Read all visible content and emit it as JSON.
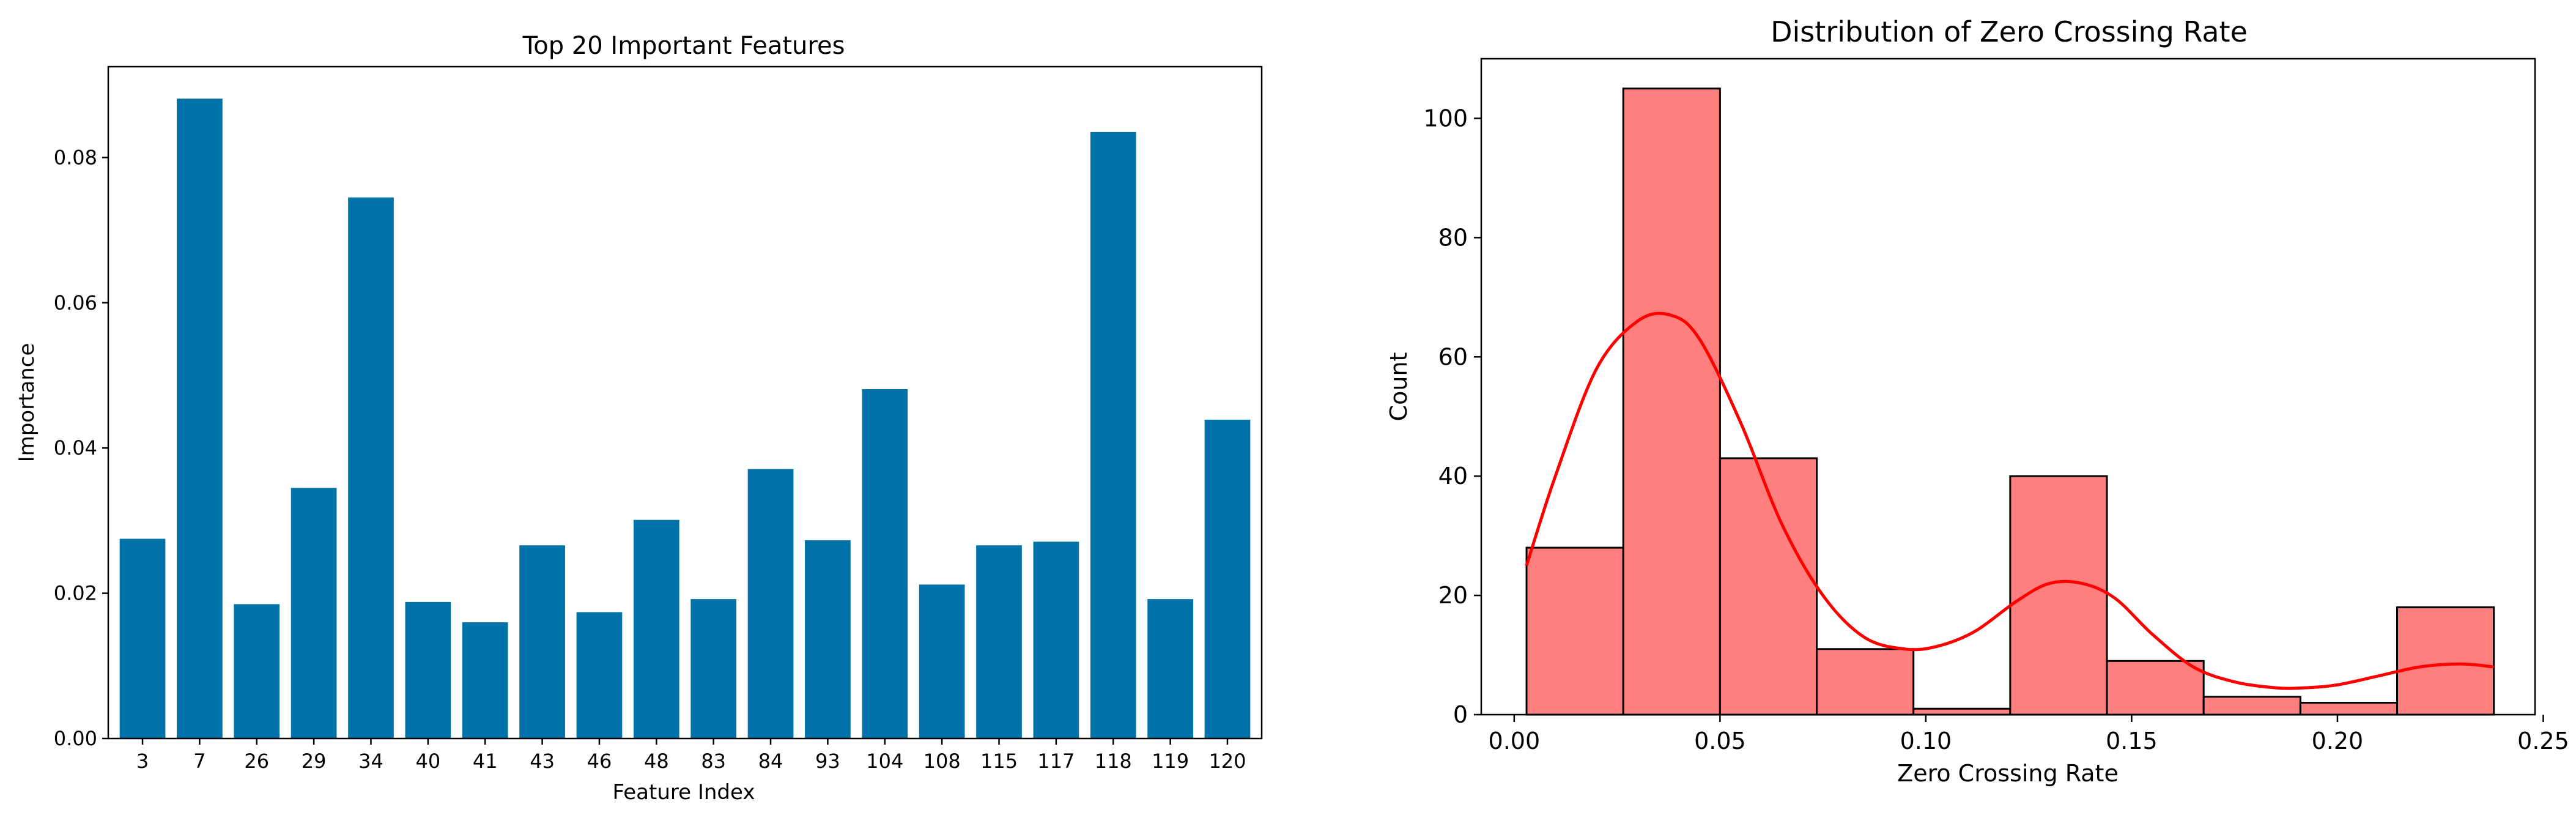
{
  "chart_data": [
    {
      "type": "bar",
      "title": "Top 20 Important Features",
      "xlabel": "Feature Index",
      "ylabel": "Importance",
      "categories": [
        "3",
        "7",
        "26",
        "29",
        "34",
        "40",
        "41",
        "43",
        "46",
        "48",
        "83",
        "84",
        "93",
        "104",
        "108",
        "115",
        "117",
        "118",
        "119",
        "120"
      ],
      "values": [
        0.0275,
        0.0881,
        0.0185,
        0.0345,
        0.0745,
        0.0188,
        0.016,
        0.0266,
        0.0174,
        0.0301,
        0.0192,
        0.0371,
        0.0273,
        0.0481,
        0.0212,
        0.0266,
        0.0271,
        0.0835,
        0.0192,
        0.0439
      ],
      "ylim": [
        0,
        0.0925
      ],
      "yticks": [
        0.0,
        0.02,
        0.04,
        0.06,
        0.08
      ],
      "ytick_labels": [
        "0.00",
        "0.02",
        "0.04",
        "0.06",
        "0.08"
      ],
      "bar_color": "#0173a8",
      "grid": false
    },
    {
      "type": "histogram",
      "title": "Distribution of Zero Crossing Rate",
      "xlabel": "Zero Crossing Rate",
      "ylabel": "Count",
      "bins": [
        {
          "x0": 0.003,
          "x1": 0.0265,
          "count": 28
        },
        {
          "x0": 0.0265,
          "x1": 0.05,
          "count": 105
        },
        {
          "x0": 0.05,
          "x1": 0.0735,
          "count": 43
        },
        {
          "x0": 0.0735,
          "x1": 0.097,
          "count": 11
        },
        {
          "x0": 0.097,
          "x1": 0.1205,
          "count": 1
        },
        {
          "x0": 0.1205,
          "x1": 0.144,
          "count": 40
        },
        {
          "x0": 0.144,
          "x1": 0.1675,
          "count": 9
        },
        {
          "x0": 0.1675,
          "x1": 0.191,
          "count": 3
        },
        {
          "x0": 0.191,
          "x1": 0.2145,
          "count": 2
        },
        {
          "x0": 0.2145,
          "x1": 0.238,
          "count": 18
        }
      ],
      "kde": {
        "x": [
          0.003,
          0.01,
          0.02,
          0.03,
          0.038,
          0.045,
          0.055,
          0.065,
          0.075,
          0.085,
          0.095,
          0.103,
          0.112,
          0.122,
          0.13,
          0.138,
          0.146,
          0.155,
          0.165,
          0.175,
          0.185,
          0.192,
          0.2,
          0.21,
          0.22,
          0.23,
          0.238
        ],
        "y": [
          25,
          40,
          58,
          66,
          67,
          63,
          49,
          32,
          20,
          13,
          11,
          11.5,
          14,
          19,
          22,
          22,
          19.5,
          13.5,
          8,
          5.5,
          4.5,
          4.5,
          5,
          6.5,
          8,
          8.5,
          8
        ]
      },
      "xlim": [
        -0.008,
        0.248
      ],
      "ylim": [
        0,
        110
      ],
      "xticks": [
        0.0,
        0.05,
        0.1,
        0.15,
        0.2,
        0.25
      ],
      "xtick_labels": [
        "0.00",
        "0.05",
        "0.10",
        "0.15",
        "0.20",
        "0.25"
      ],
      "yticks": [
        0,
        20,
        40,
        60,
        80,
        100
      ],
      "ytick_labels": [
        "0",
        "20",
        "40",
        "60",
        "80",
        "100"
      ],
      "bar_color": "#ff7f7f",
      "edge_color": "#000000",
      "kde_color": "#ff0000",
      "grid": false
    }
  ]
}
